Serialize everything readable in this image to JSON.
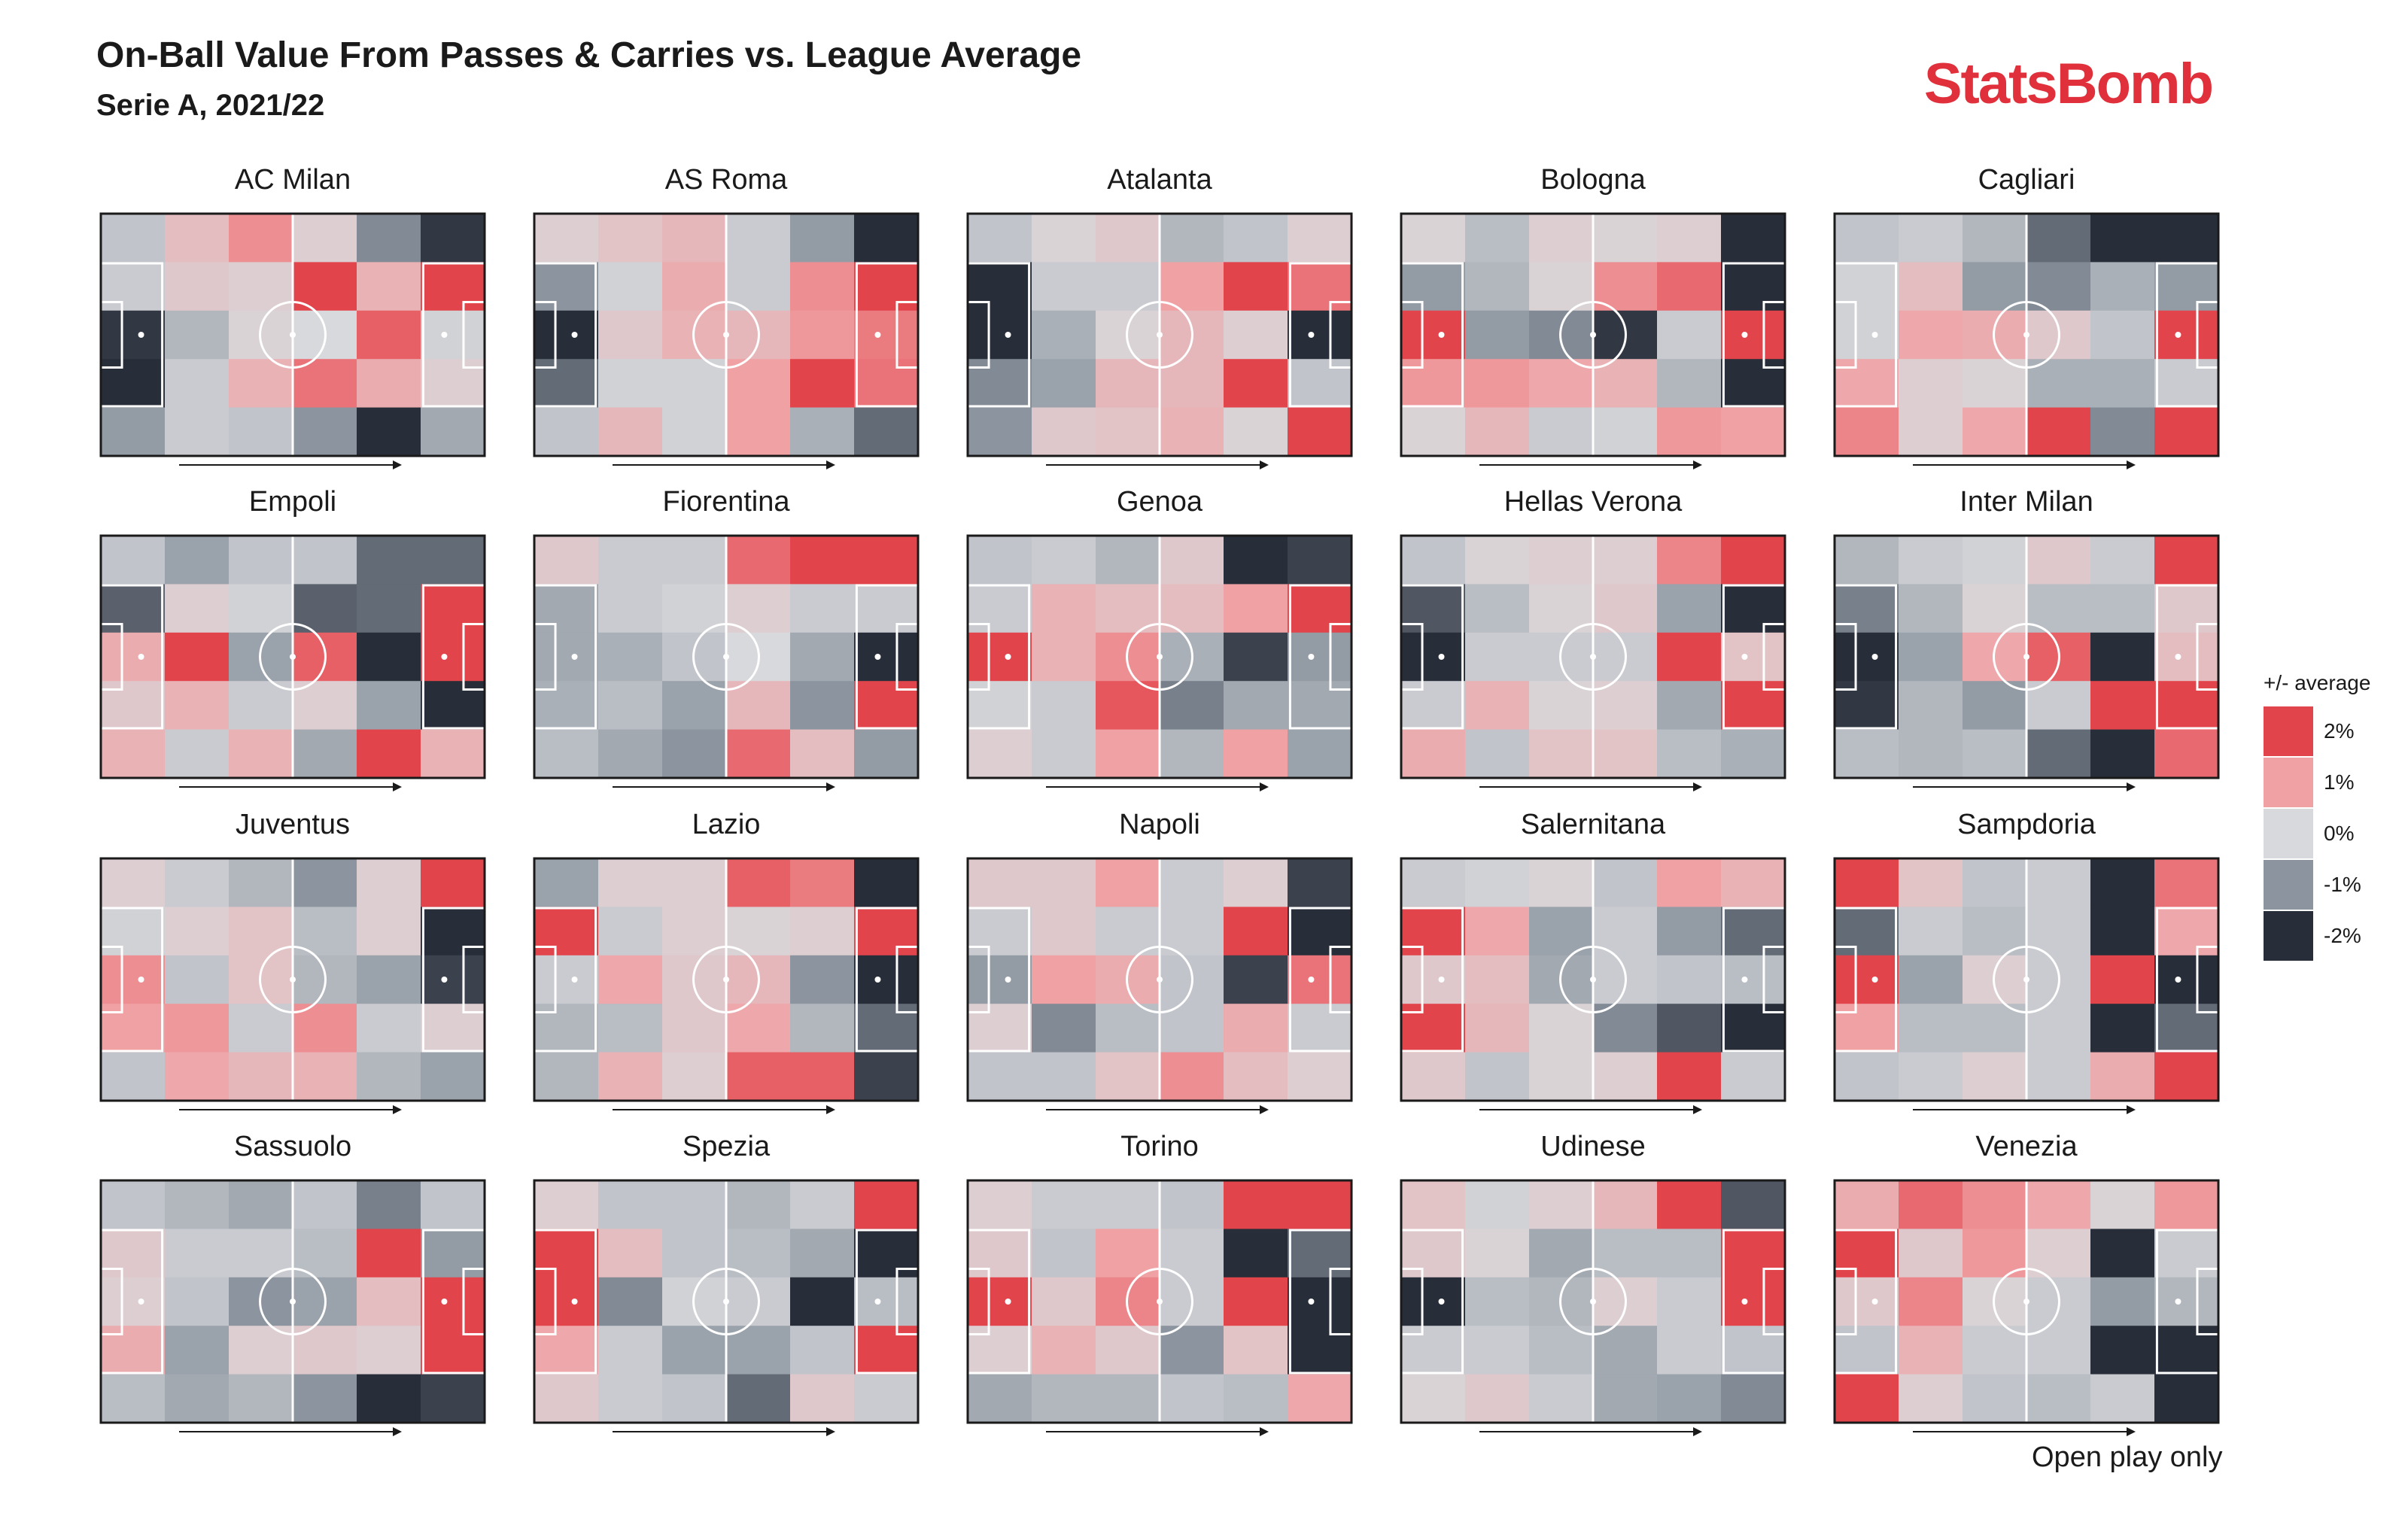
{
  "header": {
    "title": "On-Ball Value From Passes & Carries vs. League Average",
    "subtitle": "Serie A, 2021/22"
  },
  "brand": "StatsBomb",
  "footnote": "Open play only",
  "legend": {
    "title": "+/- average",
    "items": [
      {
        "label": "2%",
        "color": "#e2444b"
      },
      {
        "label": "1%",
        "color": "#f0a1a4"
      },
      {
        "label": "0%",
        "color": "#d8d9dc"
      },
      {
        "label": "-1%",
        "color": "#8b949f"
      },
      {
        "label": "-2%",
        "color": "#282e39"
      }
    ]
  },
  "chart_data": {
    "type": "heatmap",
    "title": "On-Ball Value From Passes & Carries vs. League Average",
    "subtitle": "Serie A, 2021/22",
    "value_units": "% vs league average",
    "color_range": [
      -2,
      2
    ],
    "grid": {
      "columns": 6,
      "rows": 5
    },
    "teams": [
      {
        "name": "AC Milan",
        "values": [
          [
            -0.3,
            0.5,
            1.2,
            0.2,
            -1.1,
            -1.9
          ],
          [
            -0.2,
            0.3,
            0.2,
            2,
            0.7,
            2
          ],
          [
            -1.9,
            -0.5,
            0.1,
            0,
            1.7,
            -0.1
          ],
          [
            -2,
            -0.2,
            0.7,
            1.5,
            0.8,
            0.2
          ],
          [
            -0.9,
            -0.2,
            -0.3,
            -1,
            -2,
            -0.7
          ]
        ]
      },
      {
        "name": "AS Roma",
        "values": [
          [
            0.2,
            0.4,
            0.6,
            -0.2,
            -0.9,
            -2
          ],
          [
            -1,
            -0.1,
            0.8,
            -0.2,
            1.2,
            2
          ],
          [
            -2,
            0.3,
            0.7,
            0.6,
            1.1,
            1.4
          ],
          [
            -1.4,
            -0.1,
            -0.1,
            1,
            2,
            1.5
          ],
          [
            -0.3,
            0.6,
            -0.1,
            1,
            -0.6,
            -1.4
          ]
        ]
      },
      {
        "name": "Atalanta",
        "values": [
          [
            -0.3,
            0.1,
            0.3,
            -0.5,
            -0.3,
            0.2
          ],
          [
            -2,
            -0.2,
            -0.2,
            1,
            2,
            1.5
          ],
          [
            -2,
            -0.6,
            0.1,
            0.6,
            0.2,
            -2
          ],
          [
            -1.1,
            -0.8,
            0.6,
            0.6,
            2,
            -0.3
          ],
          [
            -1,
            0.3,
            0.4,
            0.7,
            0.1,
            2
          ]
        ]
      },
      {
        "name": "Bologna",
        "values": [
          [
            0.1,
            -0.4,
            0.2,
            0.1,
            0.2,
            -2
          ],
          [
            -0.9,
            -0.5,
            0.1,
            1.2,
            1.6,
            -2
          ],
          [
            2,
            -0.9,
            -1.1,
            -1.9,
            -0.2,
            2
          ],
          [
            1.1,
            1.1,
            0.9,
            0.7,
            -0.5,
            -2
          ],
          [
            0.1,
            0.6,
            -0.2,
            -0.1,
            1.1,
            1
          ]
        ]
      },
      {
        "name": "Cagliari",
        "values": [
          [
            -0.3,
            -0.2,
            -0.5,
            -1.4,
            -2,
            -2
          ],
          [
            -0.1,
            0.5,
            -0.9,
            -1.1,
            -0.6,
            -0.9
          ],
          [
            -0.1,
            0.9,
            0.8,
            0.3,
            -0.3,
            2
          ],
          [
            0.9,
            0.2,
            0.1,
            -0.6,
            -0.6,
            -0.2
          ],
          [
            1.3,
            0.2,
            0.9,
            2,
            -1.1,
            2
          ]
        ]
      },
      {
        "name": "Empoli",
        "values": [
          [
            -0.3,
            -0.8,
            -0.3,
            -0.3,
            -1.4,
            -1.4
          ],
          [
            -1.5,
            0.2,
            -0.1,
            -1.5,
            -1.4,
            2
          ],
          [
            0.8,
            2,
            -0.8,
            1.7,
            -2,
            2
          ],
          [
            0.3,
            0.7,
            -0.2,
            0.2,
            -0.8,
            -2
          ],
          [
            0.7,
            -0.2,
            0.7,
            -0.7,
            2,
            0.7
          ]
        ]
      },
      {
        "name": "Fiorentina",
        "values": [
          [
            0.3,
            -0.2,
            -0.2,
            1.6,
            2,
            2
          ],
          [
            -0.7,
            -0.2,
            -0.1,
            0.2,
            -0.2,
            -0.2
          ],
          [
            -0.7,
            -0.6,
            -0.3,
            0,
            -0.7,
            -2
          ],
          [
            -0.6,
            -0.4,
            -0.8,
            0.6,
            -1,
            2
          ],
          [
            -0.4,
            -0.7,
            -1,
            1.6,
            0.5,
            -0.9
          ]
        ]
      },
      {
        "name": "Genoa",
        "values": [
          [
            -0.3,
            -0.2,
            -0.5,
            0.3,
            -2,
            -1.8
          ],
          [
            -0.2,
            0.7,
            0.5,
            0.5,
            1,
            2
          ],
          [
            2,
            0.7,
            1.2,
            -0.6,
            -1.8,
            -0.9
          ],
          [
            -0.1,
            -0.2,
            1.8,
            -1.2,
            -0.7,
            -0.7
          ],
          [
            0.2,
            -0.2,
            1,
            -0.5,
            1,
            -0.8
          ]
        ]
      },
      {
        "name": "Hellas Verona",
        "values": [
          [
            -0.3,
            0.1,
            0.2,
            0.2,
            1.3,
            2
          ],
          [
            -1.6,
            -0.4,
            0.1,
            0.3,
            -0.8,
            -2
          ],
          [
            -2,
            -0.2,
            -0.2,
            -0.2,
            2,
            0.4
          ],
          [
            -0.2,
            0.7,
            0.1,
            0.2,
            -0.7,
            2
          ],
          [
            0.8,
            -0.3,
            0.4,
            0.4,
            -0.4,
            -0.6
          ]
        ]
      },
      {
        "name": "Inter Milan",
        "values": [
          [
            -0.5,
            -0.2,
            -0.1,
            0.3,
            -0.2,
            2
          ],
          [
            -1.2,
            -0.5,
            0.1,
            -0.4,
            -0.4,
            0.3
          ],
          [
            -2,
            -0.8,
            0.9,
            1.7,
            -2,
            0.5
          ],
          [
            -1.9,
            -0.5,
            -0.9,
            -0.2,
            2,
            2
          ],
          [
            -0.4,
            -0.5,
            -0.4,
            -1.4,
            -2,
            1.6
          ]
        ]
      },
      {
        "name": "Juventus",
        "values": [
          [
            0.2,
            -0.2,
            -0.5,
            -1,
            0.2,
            2
          ],
          [
            -0.1,
            0.2,
            0.4,
            -0.4,
            0.2,
            -2
          ],
          [
            1.2,
            -0.3,
            0.4,
            -0.5,
            -0.8,
            -1.8
          ],
          [
            1,
            1.1,
            -0.2,
            1.2,
            -0.2,
            0.2
          ],
          [
            -0.3,
            0.9,
            0.6,
            0.7,
            -0.5,
            -0.8
          ]
        ]
      },
      {
        "name": "Lazio",
        "values": [
          [
            -0.8,
            0.2,
            0.2,
            1.7,
            1.4,
            -2
          ],
          [
            2,
            -0.2,
            0.2,
            0.1,
            0.2,
            2
          ],
          [
            -0.2,
            0.9,
            0.3,
            0.6,
            -1,
            -2
          ],
          [
            -0.5,
            -0.4,
            0.3,
            0.9,
            -0.5,
            -1.4
          ],
          [
            -0.5,
            0.7,
            0.2,
            1.7,
            1.7,
            -1.8
          ]
        ]
      },
      {
        "name": "Napoli",
        "values": [
          [
            0.3,
            0.3,
            1,
            -0.2,
            0.2,
            -1.8
          ],
          [
            -0.2,
            0.3,
            -0.2,
            -0.2,
            2,
            -2
          ],
          [
            -0.9,
            1,
            0.8,
            -0.3,
            -1.8,
            1.5
          ],
          [
            0.2,
            -1.1,
            -0.4,
            -0.3,
            0.8,
            -0.2
          ],
          [
            -0.3,
            -0.3,
            0.4,
            1.2,
            0.5,
            0.2
          ]
        ]
      },
      {
        "name": "Salernitana",
        "values": [
          [
            -0.2,
            -0.1,
            0.1,
            -0.3,
            1,
            0.7
          ],
          [
            2,
            0.9,
            -0.8,
            -0.2,
            -0.9,
            -1.4
          ],
          [
            0.3,
            0.5,
            -0.7,
            -0.2,
            -0.3,
            -0.4
          ],
          [
            2,
            0.6,
            0.1,
            -1.1,
            -1.6,
            -2
          ],
          [
            0.3,
            -0.3,
            0.1,
            0.2,
            2,
            -0.2
          ]
        ]
      },
      {
        "name": "Sampdoria",
        "values": [
          [
            2,
            0.4,
            -0.3,
            -0.2,
            -2,
            1.5
          ],
          [
            -1.4,
            -0.2,
            -0.4,
            -0.2,
            -2,
            0.9
          ],
          [
            2,
            -0.8,
            0.2,
            -0.2,
            2,
            -2
          ],
          [
            1,
            -0.4,
            -0.4,
            -0.2,
            -2,
            -1.4
          ],
          [
            -0.3,
            -0.2,
            0.2,
            -0.2,
            0.8,
            2
          ]
        ]
      },
      {
        "name": "Sassuolo",
        "values": [
          [
            -0.3,
            -0.5,
            -0.7,
            -0.3,
            -1.2,
            -0.3
          ],
          [
            0.3,
            -0.2,
            -0.2,
            -0.4,
            2,
            -0.9
          ],
          [
            0.2,
            -0.3,
            -1,
            -0.8,
            0.5,
            2
          ],
          [
            0.8,
            -0.8,
            0.2,
            0.3,
            0.2,
            2
          ],
          [
            -0.4,
            -0.7,
            -0.5,
            -1,
            -2,
            -1.8
          ]
        ]
      },
      {
        "name": "Spezia",
        "values": [
          [
            0.2,
            -0.3,
            -0.3,
            -0.5,
            -0.2,
            2
          ],
          [
            2,
            0.5,
            -0.3,
            -0.4,
            -0.7,
            -2
          ],
          [
            2,
            -1.1,
            -0.1,
            -0.2,
            -2,
            -0.4
          ],
          [
            0.9,
            -0.2,
            -0.8,
            -0.8,
            -0.3,
            2
          ],
          [
            0.3,
            -0.2,
            -0.3,
            -1.4,
            0.3,
            -0.2
          ]
        ]
      },
      {
        "name": "Torino",
        "values": [
          [
            0.2,
            -0.2,
            -0.2,
            -0.3,
            2,
            2
          ],
          [
            0.3,
            -0.3,
            1,
            -0.2,
            -2,
            -1.4
          ],
          [
            2,
            0.3,
            1.3,
            -0.2,
            2,
            -2
          ],
          [
            0.2,
            0.7,
            0.3,
            -1,
            0.4,
            -2
          ],
          [
            -0.7,
            -0.5,
            -0.5,
            -0.3,
            -0.4,
            0.9
          ]
        ]
      },
      {
        "name": "Udinese",
        "values": [
          [
            0.4,
            -0.1,
            0.2,
            0.6,
            2,
            -1.6
          ],
          [
            0.3,
            0.1,
            -0.7,
            -0.4,
            -0.4,
            2
          ],
          [
            -2,
            -0.4,
            -0.5,
            0.2,
            -0.2,
            2
          ],
          [
            -0.2,
            -0.2,
            -0.4,
            -0.7,
            -0.2,
            -0.3
          ],
          [
            0.1,
            0.3,
            -0.2,
            -0.7,
            -0.8,
            -1.1
          ]
        ]
      },
      {
        "name": "Venezia",
        "values": [
          [
            0.8,
            1.6,
            1.2,
            0.9,
            0.1,
            1.1
          ],
          [
            2,
            0.3,
            1.1,
            0.2,
            -2,
            -0.2
          ],
          [
            0.3,
            1.3,
            0.1,
            -0.2,
            -0.9,
            -0.5
          ],
          [
            -0.3,
            0.7,
            -0.2,
            -0.2,
            -2,
            -2
          ],
          [
            2,
            0.2,
            -0.3,
            -0.4,
            -0.2,
            -2
          ]
        ]
      }
    ]
  }
}
